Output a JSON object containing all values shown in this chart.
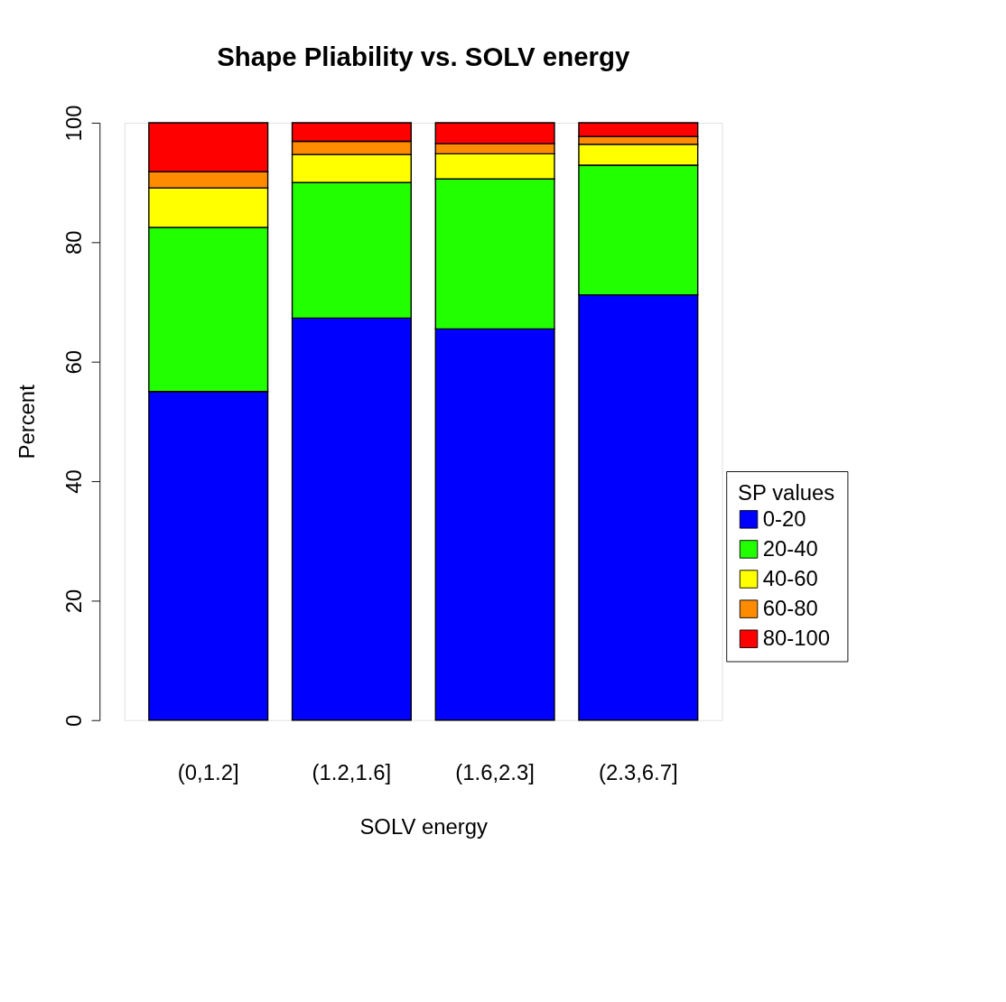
{
  "chart_data": {
    "type": "bar",
    "stacked": true,
    "title": "Shape Pliability vs. SOLV energy",
    "xlabel": "SOLV energy",
    "ylabel": "Percent",
    "legend_title": "SP values",
    "legend": "bottom right",
    "grid": false,
    "categories": [
      "(0,1.2]",
      "(1.2,1.6]",
      "(1.6,2.3]",
      "(2.3,6.7]"
    ],
    "ylim": [
      0,
      100
    ],
    "yticks": [
      0,
      20,
      40,
      60,
      80,
      100
    ],
    "series": [
      {
        "name": "0-20",
        "color": "#0000ff",
        "values": [
          55.0,
          67.3,
          65.5,
          71.2
        ]
      },
      {
        "name": "20-40",
        "color": "#22ff00",
        "values": [
          27.5,
          22.7,
          25.1,
          21.7
        ]
      },
      {
        "name": "40-60",
        "color": "#ffff00",
        "values": [
          6.6,
          4.7,
          4.2,
          3.5
        ]
      },
      {
        "name": "60-80",
        "color": "#ff8c00",
        "values": [
          2.7,
          2.2,
          1.7,
          1.3
        ]
      },
      {
        "name": "80-100",
        "color": "#ff0000",
        "values": [
          8.2,
          3.1,
          3.5,
          2.3
        ]
      }
    ]
  }
}
